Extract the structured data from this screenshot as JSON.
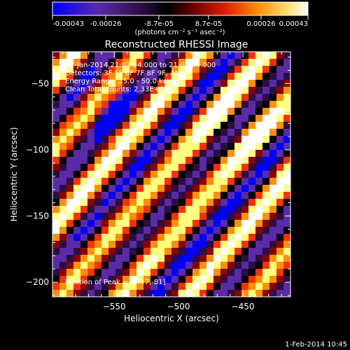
{
  "colorbar": {
    "ticks": [
      "-0.00043",
      "-0.00026",
      "-8.7e-05",
      "8.7e-05",
      "0.00026",
      "0.00043"
    ],
    "unit_label": "(photons cm⁻² s⁻¹ asec⁻²)"
  },
  "chart_data": {
    "type": "heatmap",
    "title": "Reconstructed RHESSI Image",
    "xlabel": "Heliocentric X (arcsec)",
    "ylabel": "Heliocentric Y (arcsec)",
    "xlim": [
      -598,
      -413
    ],
    "ylim": [
      -211,
      -26
    ],
    "x_ticks": [
      -550,
      -500,
      -450
    ],
    "x_tick_labels": [
      "−550",
      "−500",
      "−450"
    ],
    "y_ticks": [
      -50,
      -100,
      -150,
      -200
    ],
    "y_tick_labels": [
      "−50",
      "−100",
      "−150",
      "−200"
    ],
    "color_range": [
      -0.00043,
      0.00043
    ],
    "colormap": [
      "#0000ff",
      "#5a2aa8",
      "#2a1040",
      "#000000",
      "#8b0000",
      "#ff3000",
      "#ff9000",
      "#ffff80",
      "#ffffff"
    ],
    "peak": [
      -447,
      -81
    ],
    "annotations": [
      "31-Jan-2014 21:02:54.000 to 21:08:54.000",
      "Detectors: 3F 5F 6F 7F 8F 9F, Att 0",
      "Energy Range: 25.0 - 50.0 keV",
      "Clean     Total counts: 2.33E+04"
    ],
    "peak_label": "Position of Peak = [-447,-81]",
    "grid": false
  },
  "footer": {
    "timestamp": "1-Feb-2014 10:45"
  }
}
